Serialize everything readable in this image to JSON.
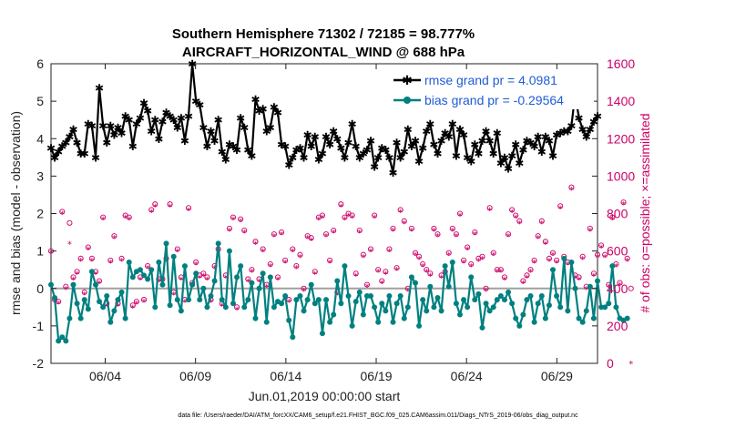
{
  "chart_data": {
    "type": "line",
    "title": "Southern Hemisphere 71302 / 72185 = 98.777%",
    "subtitle": "AIRCRAFT_HORIZONTAL_WIND @ 688 hPa",
    "xlabel": "Jun.01,2019 00:00:00 start",
    "ylabel_left": "rmse and bias (model - observation)",
    "ylabel_right": "# of obs: o=possible; ×=assimilated",
    "x_tick_labels": [
      "06/04",
      "06/09",
      "06/14",
      "06/19",
      "06/24",
      "06/29"
    ],
    "x_tick_days": [
      4,
      9,
      14,
      19,
      24,
      29
    ],
    "x_range_days": [
      1,
      31.25
    ],
    "ylim_left": [
      -2,
      6
    ],
    "y_ticks_left": [
      "-2",
      "-1",
      "0",
      "1",
      "2",
      "3",
      "4",
      "5",
      "6"
    ],
    "ylim_right": [
      0,
      1600
    ],
    "y_ticks_right": [
      "0",
      "200",
      "400",
      "600",
      "800",
      "1000",
      "1200",
      "1400",
      "1600"
    ],
    "legend": [
      {
        "label": "rmse grand pr = 4.0981",
        "color": "#000000"
      },
      {
        "label": "bias grand pr = -0.29564",
        "color": "#008080"
      }
    ],
    "legend_position": "top-right",
    "zero_line": 0,
    "series": [
      {
        "name": "rmse",
        "color": "#000000",
        "values": [
          3.75,
          3.5,
          3.65,
          3.8,
          3.9,
          4.05,
          4.25,
          3.9,
          3.6,
          3.6,
          4.4,
          4.35,
          3.5,
          5.35,
          4.35,
          3.9,
          4.35,
          4.1,
          4.3,
          4.15,
          4.6,
          4.5,
          3.8,
          4.4,
          4.55,
          4.95,
          4.75,
          4.2,
          4.5,
          4.0,
          4.45,
          4.7,
          4.6,
          4.5,
          4.3,
          4.55,
          3.95,
          4.6,
          6.0,
          5.0,
          4.9,
          4.3,
          3.8,
          4.2,
          3.95,
          4.5,
          3.65,
          3.45,
          3.85,
          3.8,
          3.7,
          4.55,
          4.3,
          3.7,
          3.55,
          5.05,
          4.75,
          4.8,
          4.2,
          4.3,
          4.85,
          4.7,
          3.85,
          3.8,
          3.3,
          3.5,
          3.7,
          3.75,
          3.5,
          4.1,
          3.8,
          4.05,
          3.45,
          3.6,
          4.05,
          3.85,
          4.2,
          4.0,
          3.75,
          3.5,
          3.9,
          4.4,
          3.8,
          3.5,
          3.6,
          3.7,
          3.95,
          3.25,
          3.5,
          3.75,
          3.7,
          3.5,
          3.1,
          3.9,
          3.5,
          3.65,
          4.25,
          3.8,
          3.95,
          3.4,
          3.75,
          4.2,
          4.4,
          3.85,
          3.6,
          3.95,
          4.15,
          4.05,
          4.4,
          3.55,
          4.25,
          4.1,
          3.5,
          3.4,
          3.85,
          3.6,
          3.95,
          4.2,
          3.95,
          3.6,
          4.15,
          3.35,
          3.5,
          3.2,
          3.55,
          3.85,
          3.35,
          3.7,
          3.95,
          3.9,
          3.8,
          4.05,
          3.65,
          4.05,
          3.95,
          3.55,
          4.1,
          4.15,
          4.2,
          4.2,
          4.35,
          5.2,
          4.55,
          4.25,
          4.05,
          4.25,
          4.45,
          4.6
        ]
      },
      {
        "name": "bias",
        "color": "#008080",
        "values": [
          0.1,
          -0.25,
          -1.4,
          -1.3,
          -1.4,
          -0.8,
          0.1,
          -0.4,
          -0.8,
          -0.3,
          -0.55,
          0.45,
          0.1,
          -0.35,
          -0.5,
          -0.2,
          -0.9,
          -0.6,
          -0.3,
          -0.1,
          -0.8,
          0.7,
          0.3,
          0.45,
          0.5,
          0.35,
          0.25,
          0.5,
          -0.5,
          0.7,
          0.1,
          1.2,
          -0.45,
          0.85,
          -0.3,
          -0.6,
          0.6,
          -0.3,
          0.1,
          0.4,
          -0.3,
          0.0,
          -0.5,
          -0.2,
          0.2,
          1.2,
          -0.3,
          -0.5,
          1.0,
          -0.4,
          0.3,
          0.6,
          -0.5,
          -0.3,
          0.15,
          -0.8,
          0.0,
          0.4,
          -0.9,
          0.3,
          -0.5,
          -0.35,
          -0.4,
          -0.2,
          -0.85,
          -1.3,
          -0.3,
          -0.2,
          -0.6,
          -0.3,
          0.1,
          -0.4,
          -0.3,
          -1.2,
          -0.3,
          -0.9,
          -0.7,
          0.2,
          -0.4,
          0.6,
          -0.2,
          -1.0,
          -0.35,
          -0.1,
          -0.7,
          -0.2,
          -0.2,
          -0.5,
          -0.9,
          -0.4,
          -0.6,
          -0.2,
          -0.9,
          -0.4,
          -0.2,
          -0.8,
          -0.5,
          0.3,
          0.15,
          -1.0,
          -0.3,
          -0.6,
          0.05,
          -0.5,
          -0.25,
          -0.6,
          0.6,
          0.05,
          0.7,
          -0.4,
          -0.7,
          -0.3,
          -0.5,
          0.3,
          -0.3,
          -0.15,
          -1.05,
          -0.4,
          -0.6,
          -0.5,
          -0.3,
          -0.2,
          -0.3,
          -0.1,
          -0.4,
          -0.8,
          -1.0,
          -0.7,
          -0.3,
          -0.2,
          -0.9,
          -0.4,
          -0.2,
          -0.8,
          -0.45,
          0.5,
          -0.2,
          -0.5,
          0.8,
          -0.6,
          0.7,
          0.0,
          -0.8,
          -0.9,
          -0.6,
          0.05,
          -0.8,
          0.2,
          -0.5,
          -0.5,
          -0.4,
          0.6,
          -0.5,
          -0.8,
          -0.85,
          -0.8
        ]
      },
      {
        "name": "obs_possible",
        "color": "#cc0066",
        "axis": "right",
        "values": [
          600,
          340,
          330,
          810,
          410,
          750,
          460,
          490,
          560,
          380,
          620,
          560,
          490,
          440,
          780,
          320,
          550,
          680,
          320,
          560,
          790,
          780,
          310,
          330,
          460,
          340,
          520,
          820,
          850,
          450,
          450,
          560,
          850,
          380,
          610,
          460,
          340,
          830,
          430,
          540,
          470,
          480,
          460,
          340,
          520,
          610,
          320,
          470,
          720,
          780,
          300,
          770,
          710,
          450,
          500,
          650,
          450,
          610,
          420,
          530,
          690,
          460,
          700,
          550,
          340,
          610,
          520,
          580,
          400,
          680,
          670,
          490,
          780,
          790,
          690,
          550,
          710,
          380,
          850,
          780,
          800,
          790,
          480,
          710,
          580,
          420,
          610,
          790,
          500,
          440,
          490,
          610,
          720,
          510,
          820,
          760,
          400,
          720,
          590,
          570,
          530,
          500,
          480,
          720,
          690,
          470,
          490,
          590,
          720,
          690,
          800,
          550,
          620,
          530,
          700,
          560,
          570,
          400,
          830,
          590,
          500,
          500,
          460,
          690,
          820,
          790,
          760,
          440,
          470,
          500,
          550,
          680,
          760,
          650,
          560,
          590,
          550,
          840,
          570,
          540,
          940,
          470,
          460,
          570,
          410,
          720,
          480,
          580,
          630,
          580,
          420,
          780,
          530,
          430,
          860,
          560,
          400
        ]
      },
      {
        "name": "obs_assimilated",
        "color": "#cc0066",
        "axis": "right",
        "values": [
          590,
          330,
          320,
          800,
          400,
          640,
          450,
          480,
          550,
          370,
          610,
          550,
          480,
          430,
          770,
          310,
          540,
          670,
          310,
          550,
          780,
          770,
          300,
          320,
          450,
          330,
          510,
          810,
          840,
          440,
          440,
          550,
          840,
          370,
          600,
          450,
          330,
          820,
          420,
          530,
          460,
          470,
          450,
          330,
          510,
          600,
          310,
          460,
          710,
          770,
          290,
          760,
          700,
          440,
          490,
          640,
          440,
          600,
          410,
          520,
          680,
          450,
          690,
          540,
          330,
          600,
          510,
          570,
          390,
          670,
          660,
          480,
          770,
          780,
          680,
          540,
          700,
          370,
          840,
          770,
          790,
          780,
          470,
          700,
          570,
          410,
          600,
          780,
          490,
          430,
          480,
          600,
          710,
          500,
          810,
          750,
          390,
          710,
          580,
          560,
          520,
          490,
          470,
          710,
          680,
          460,
          480,
          580,
          710,
          680,
          790,
          540,
          610,
          520,
          690,
          550,
          560,
          390,
          820,
          580,
          490,
          490,
          450,
          680,
          810,
          780,
          750,
          430,
          460,
          490,
          540,
          670,
          750,
          640,
          550,
          580,
          540,
          830,
          560,
          530,
          930,
          460,
          450,
          560,
          400,
          710,
          470,
          570,
          620,
          570,
          410,
          770,
          520,
          420,
          850,
          550,
          0
        ]
      }
    ]
  },
  "footnote": "data file: /Users/raeder/DAI/ATM_forcXX/CAM6_setup/f.e21.FHIST_BGC.f09_025.CAM6assim.011/Diags_NTrS_2019-06/obs_diag_output.nc"
}
